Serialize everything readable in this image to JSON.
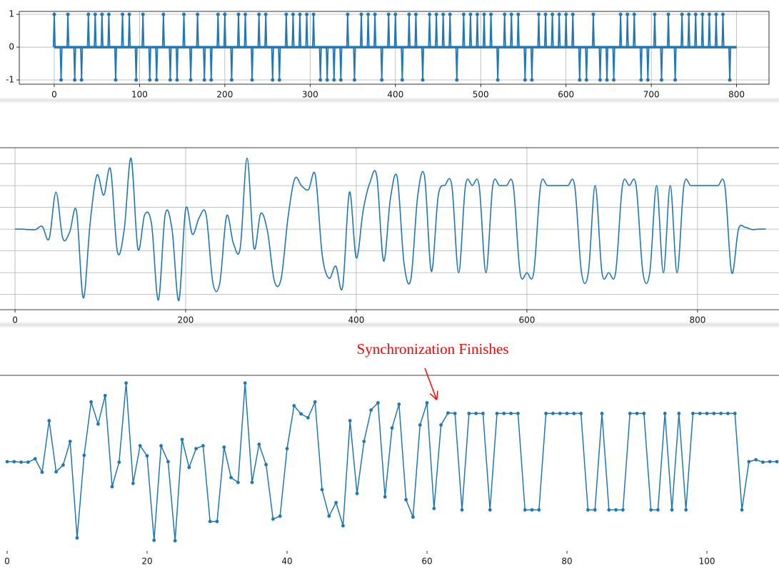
{
  "chart_data": [
    {
      "type": "stem",
      "color": "#1f77b4",
      "grid": true,
      "x": [
        0,
        8,
        16,
        24,
        32,
        40,
        48,
        56,
        64,
        72,
        80,
        88,
        96,
        104,
        112,
        120,
        128,
        136,
        144,
        152,
        160,
        168,
        176,
        184,
        192,
        200,
        208,
        216,
        224,
        232,
        240,
        248,
        256,
        264,
        272,
        280,
        288,
        296,
        304,
        312,
        320,
        328,
        336,
        344,
        352,
        360,
        368,
        376,
        384,
        392,
        400,
        408,
        416,
        424,
        432,
        440,
        448,
        456,
        464,
        472,
        480,
        488,
        496,
        504,
        512,
        520,
        528,
        536,
        544,
        552,
        560,
        568,
        576,
        584,
        592,
        600,
        608,
        616,
        624,
        632,
        640,
        648,
        656,
        664,
        672,
        680,
        688,
        696,
        704,
        712,
        720,
        728,
        736,
        744,
        752,
        760,
        768,
        776,
        784,
        792
      ],
      "values": [
        1,
        -1,
        1,
        -1,
        -1,
        1,
        1,
        1,
        1,
        -1,
        1,
        1,
        -1,
        1,
        -1,
        -1,
        1,
        -1,
        -1,
        1,
        -1,
        1,
        -1,
        -1,
        1,
        1,
        -1,
        1,
        1,
        -1,
        1,
        1,
        -1,
        -1,
        1,
        1,
        1,
        1,
        1,
        -1,
        -1,
        -1,
        -1,
        1,
        -1,
        1,
        1,
        1,
        -1,
        1,
        1,
        -1,
        1,
        1,
        -1,
        1,
        1,
        1,
        1,
        -1,
        1,
        1,
        1,
        1,
        1,
        -1,
        1,
        1,
        1,
        -1,
        -1,
        1,
        1,
        1,
        1,
        1,
        1,
        -1,
        -1,
        1,
        -1,
        -1,
        -1,
        1,
        1,
        1,
        -1,
        -1,
        1,
        -1,
        1,
        -1,
        1,
        1,
        1,
        1,
        1,
        1,
        1,
        -1
      ],
      "xlim": [
        -41,
        838
      ],
      "ylim": [
        -1.13,
        1.09
      ],
      "xticks": [
        0,
        100,
        200,
        300,
        400,
        500,
        600,
        700,
        800
      ],
      "yticks": [
        -1,
        0,
        1
      ]
    },
    {
      "type": "line",
      "color": "#1f77b4",
      "grid": true,
      "ytick_labels": false,
      "x": [
        0,
        8,
        16,
        24,
        32,
        40,
        48,
        56,
        64,
        72,
        80,
        88,
        96,
        104,
        112,
        120,
        128,
        136,
        144,
        152,
        160,
        168,
        176,
        184,
        192,
        200,
        208,
        216,
        224,
        232,
        240,
        248,
        256,
        264,
        272,
        280,
        288,
        296,
        304,
        312,
        320,
        328,
        336,
        344,
        352,
        360,
        368,
        376,
        384,
        392,
        400,
        408,
        416,
        424,
        432,
        440,
        448,
        456,
        464,
        472,
        480,
        488,
        496,
        504,
        512,
        520,
        528,
        536,
        544,
        552,
        560,
        568,
        576,
        584,
        592,
        600,
        608,
        616,
        624,
        632,
        640,
        648,
        656,
        664,
        672,
        680,
        688,
        696,
        704,
        712,
        720,
        728,
        736,
        744,
        752,
        760,
        768,
        776,
        784,
        792,
        800,
        808,
        816,
        824,
        832,
        840,
        848,
        856,
        864,
        872,
        880
      ],
      "values": [
        0,
        0,
        -0.01,
        -0.01,
        0.06,
        -0.22,
        0.85,
        -0.21,
        -0.07,
        0.42,
        -1.58,
        0.13,
        1.24,
        0.78,
        1.37,
        -0.52,
        -0.01,
        1.63,
        -0.45,
        0.33,
        0.12,
        -1.63,
        0.33,
        0,
        -1.64,
        0.46,
        -0.12,
        0.27,
        0.33,
        -1.24,
        -1.24,
        0.3,
        -0.33,
        -0.43,
        1.63,
        -0.43,
        0.36,
        -0.06,
        -1.19,
        -1.13,
        0.27,
        1.16,
        0.99,
        0.91,
        1.24,
        -0.58,
        -1.13,
        -0.85,
        -1.33,
        0.85,
        -0.66,
        0.42,
        1.07,
        1.22,
        -0.73,
        0.7,
        1.19,
        -0.79,
        -1.15,
        0.76,
        1.22,
        -0.97,
        0.76,
        1.01,
        1,
        -1,
        1,
        1,
        1,
        -1,
        1,
        1,
        1,
        1,
        -1,
        -1,
        -1,
        1,
        1,
        1,
        1,
        1,
        1,
        -1,
        -1,
        1,
        -1,
        -1,
        -1,
        1,
        1,
        1,
        -1,
        -1,
        1,
        -1,
        1,
        -1,
        1,
        1,
        1,
        1,
        1,
        1,
        1,
        -1,
        0,
        0.04,
        -0.01,
        0,
        0
      ],
      "xlim": [
        -17.6,
        895.5
      ],
      "ylim": [
        -1.85,
        1.87
      ],
      "xticks": [
        0,
        200,
        400,
        600,
        800
      ],
      "yticks": [
        -1.5,
        -1,
        -0.5,
        0,
        0.5,
        1,
        1.5
      ]
    },
    {
      "type": "line_markers",
      "color": "#1f77b4",
      "grid": false,
      "x": [
        0,
        1,
        2,
        3,
        4,
        5,
        6,
        7,
        8,
        9,
        10,
        11,
        12,
        13,
        14,
        15,
        16,
        17,
        18,
        19,
        20,
        21,
        22,
        23,
        24,
        25,
        26,
        27,
        28,
        29,
        30,
        31,
        32,
        33,
        34,
        35,
        36,
        37,
        38,
        39,
        40,
        41,
        42,
        43,
        44,
        45,
        46,
        47,
        48,
        49,
        50,
        51,
        52,
        53,
        54,
        55,
        56,
        57,
        58,
        59,
        60,
        61,
        62,
        63,
        64,
        65,
        66,
        67,
        68,
        69,
        70,
        71,
        72,
        73,
        74,
        75,
        76,
        77,
        78,
        79,
        80,
        81,
        82,
        83,
        84,
        85,
        86,
        87,
        88,
        89,
        90,
        91,
        92,
        93,
        94,
        95,
        96,
        97,
        98,
        99,
        100,
        101,
        102,
        103,
        104,
        105,
        106,
        107,
        108,
        109,
        110
      ],
      "values": [
        0,
        0,
        -0.01,
        -0.01,
        0.06,
        -0.22,
        0.85,
        -0.21,
        -0.07,
        0.42,
        -1.58,
        0.13,
        1.24,
        0.78,
        1.37,
        -0.52,
        -0.01,
        1.63,
        -0.45,
        0.33,
        0.12,
        -1.63,
        0.33,
        0,
        -1.64,
        0.46,
        -0.12,
        0.27,
        0.33,
        -1.24,
        -1.24,
        0.3,
        -0.33,
        -0.43,
        1.63,
        -0.43,
        0.36,
        -0.06,
        -1.19,
        -1.13,
        0.27,
        1.16,
        0.99,
        0.91,
        1.24,
        -0.58,
        -1.13,
        -0.85,
        -1.33,
        0.85,
        -0.66,
        0.42,
        1.07,
        1.22,
        -0.73,
        0.7,
        1.19,
        -0.79,
        -1.15,
        0.76,
        1.22,
        -0.97,
        0.76,
        1.01,
        1,
        -1,
        1,
        1,
        1,
        -1,
        1,
        1,
        1,
        1,
        -1,
        -1,
        -1,
        1,
        1,
        1,
        1,
        1,
        1,
        -1,
        -1,
        1,
        -1,
        -1,
        -1,
        1,
        1,
        1,
        -1,
        -1,
        1,
        -1,
        1,
        -1,
        1,
        1,
        1,
        1,
        1,
        1,
        1,
        -1,
        0,
        0.04,
        -0.01,
        0,
        0
      ],
      "xlim": [
        -1.02,
        110.3
      ],
      "ylim": [
        -1.85,
        1.79
      ],
      "xticks": [
        0,
        20,
        40,
        60,
        80,
        100
      ],
      "annotation": {
        "text": "Synchronization  Finishes",
        "xy": [
          61.4,
          1.28
        ],
        "color": "#ff0000"
      }
    }
  ]
}
